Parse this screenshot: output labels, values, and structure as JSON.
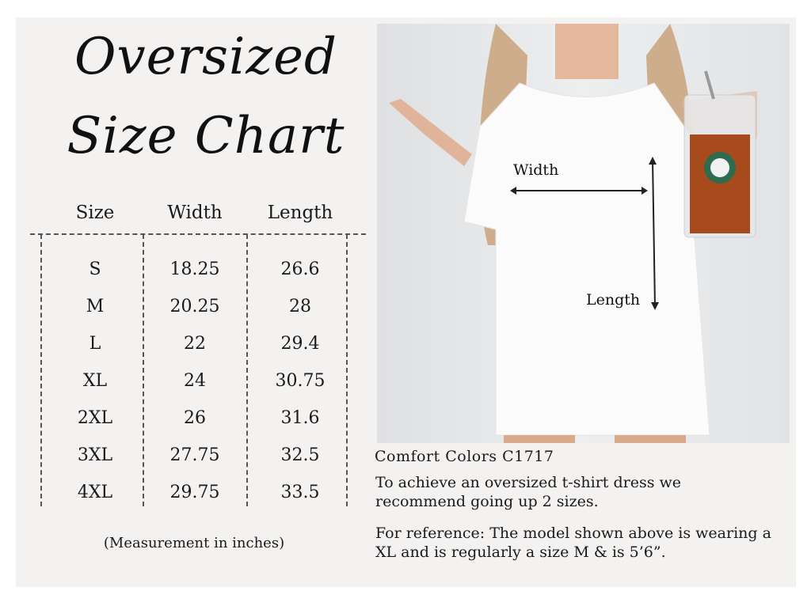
{
  "title": {
    "line1": "Oversized",
    "line2": "Size Chart"
  },
  "table": {
    "headers": [
      "Size",
      "Width",
      "Length"
    ],
    "rows": [
      [
        "S",
        "18.25",
        "26.6"
      ],
      [
        "M",
        "20.25",
        "28"
      ],
      [
        "L",
        "22",
        "29.4"
      ],
      [
        "XL",
        "24",
        "30.75"
      ],
      [
        "2XL",
        "26",
        "31.6"
      ],
      [
        "3XL",
        "27.75",
        "32.5"
      ],
      [
        "4XL",
        "29.75",
        "33.5"
      ]
    ],
    "note": "(Measurement in inches)"
  },
  "photo": {
    "width_label": "Width",
    "length_label": "Length"
  },
  "info": {
    "brand": "Comfort Colors C1717",
    "recommendation": "To achieve an oversized t-shirt dress we recommend going up 2 sizes.",
    "reference": "For reference: The model shown above is wearing a XL and is regularly a size M & is 5’6”."
  }
}
